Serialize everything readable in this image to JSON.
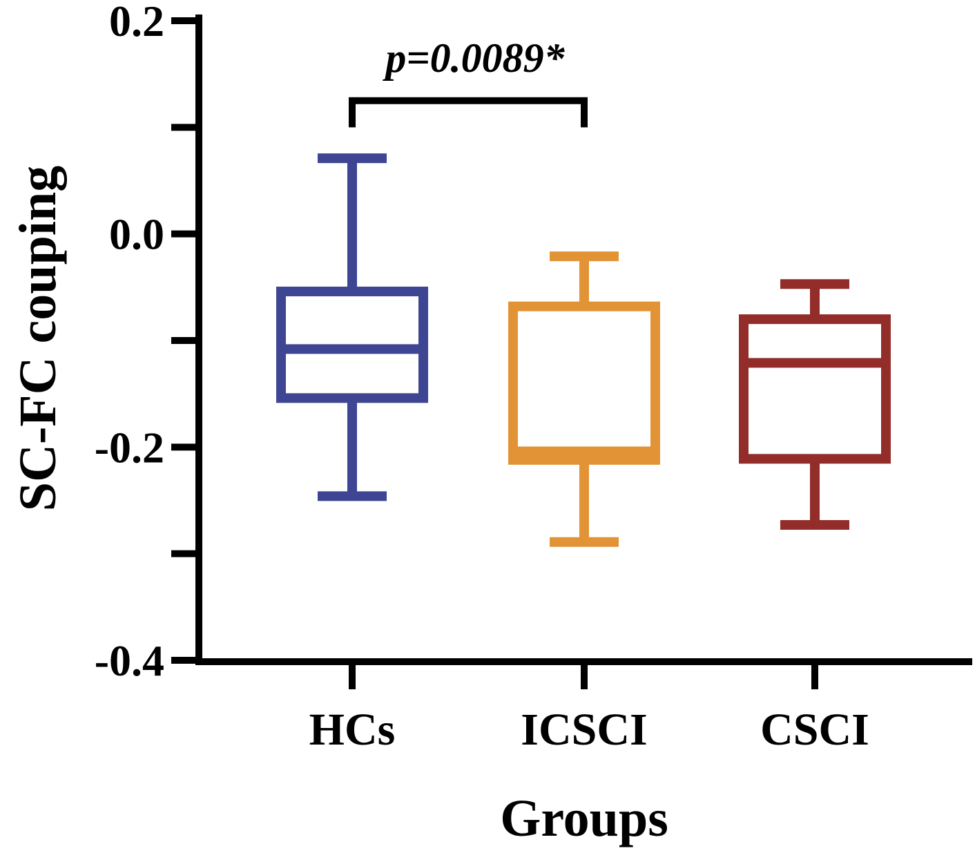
{
  "chart_data": {
    "type": "box",
    "title": "",
    "xlabel": "Groups",
    "ylabel": "SC-FC couping",
    "ylim": [
      -0.4,
      0.2
    ],
    "y_ticks": [
      {
        "value": 0.2,
        "label": "0.2"
      },
      {
        "value": 0.1,
        "label": ""
      },
      {
        "value": 0.0,
        "label": "0.0"
      },
      {
        "value": -0.1,
        "label": ""
      },
      {
        "value": -0.2,
        "label": "-0.2"
      },
      {
        "value": -0.3,
        "label": ""
      },
      {
        "value": -0.4,
        "label": "-0.4"
      }
    ],
    "categories": [
      "HCs",
      "ICSCI",
      "CSCI"
    ],
    "series": [
      {
        "category": "HCs",
        "color": "#3e4592",
        "whisker_low": -0.246,
        "q1": -0.154,
        "median": -0.108,
        "q3": -0.054,
        "whisker_high": 0.071
      },
      {
        "category": "ICSCI",
        "color": "#e29335",
        "whisker_low": -0.289,
        "q1": -0.212,
        "median": -0.204,
        "q3": -0.068,
        "whisker_high": -0.021
      },
      {
        "category": "CSCI",
        "color": "#922d29",
        "whisker_low": -0.273,
        "q1": -0.211,
        "median": -0.121,
        "q3": -0.08,
        "whisker_high": -0.047
      }
    ],
    "annotation": {
      "text": "p=0.0089*",
      "from": "HCs",
      "to": "ICSCI",
      "bracket_y": 0.125,
      "leg_bottom_y": 0.1
    }
  }
}
